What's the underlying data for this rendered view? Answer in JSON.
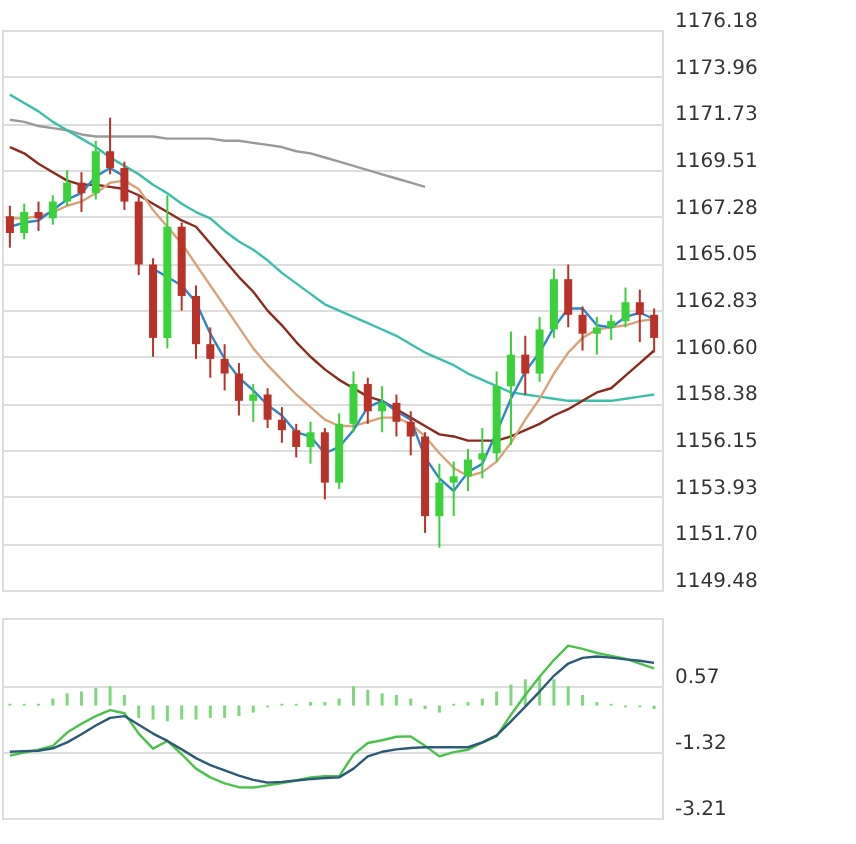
{
  "chart_data": [
    {
      "type": "candlestick",
      "categories": [
        null,
        null,
        null,
        null,
        null,
        null,
        null,
        null,
        null,
        null,
        null,
        null,
        null,
        null,
        null,
        null,
        null,
        null,
        null,
        null,
        null,
        null,
        null,
        null,
        null,
        null,
        null,
        null,
        null,
        null,
        null,
        null,
        null,
        null,
        null,
        null,
        null,
        null,
        null,
        null,
        null,
        null,
        null,
        null,
        null,
        null
      ],
      "ohlc": [
        [
          1167.3,
          1167.8,
          1165.8,
          1166.5
        ],
        [
          1166.5,
          1167.9,
          1166.2,
          1167.5
        ],
        [
          1167.5,
          1168.0,
          1166.6,
          1167.2
        ],
        [
          1167.2,
          1168.3,
          1166.9,
          1168.0
        ],
        [
          1168.0,
          1169.5,
          1167.8,
          1168.9
        ],
        [
          1168.9,
          1169.4,
          1167.5,
          1168.4
        ],
        [
          1168.4,
          1170.9,
          1168.1,
          1170.4
        ],
        [
          1170.4,
          1172.0,
          1169.3,
          1169.6
        ],
        [
          1169.6,
          1169.9,
          1167.6,
          1168.0
        ],
        [
          1168.0,
          1168.3,
          1164.5,
          1165.0
        ],
        [
          1165.0,
          1165.3,
          1160.6,
          1161.5
        ],
        [
          1161.5,
          1168.3,
          1161.0,
          1166.8
        ],
        [
          1166.8,
          1167.0,
          1162.8,
          1163.5
        ],
        [
          1163.5,
          1164.0,
          1160.5,
          1161.2
        ],
        [
          1161.2,
          1162.0,
          1159.6,
          1160.5
        ],
        [
          1160.5,
          1161.2,
          1159.0,
          1159.8
        ],
        [
          1159.8,
          1160.3,
          1157.8,
          1158.5
        ],
        [
          1158.5,
          1159.3,
          1157.5,
          1158.8
        ],
        [
          1158.8,
          1159.1,
          1157.2,
          1157.6
        ],
        [
          1157.6,
          1158.2,
          1156.5,
          1157.1
        ],
        [
          1157.1,
          1157.4,
          1155.8,
          1156.3
        ],
        [
          1156.3,
          1157.5,
          1155.5,
          1157.0
        ],
        [
          1157.0,
          1157.2,
          1153.8,
          1154.6
        ],
        [
          1154.6,
          1157.9,
          1154.3,
          1157.4
        ],
        [
          1157.4,
          1159.9,
          1157.0,
          1159.3
        ],
        [
          1159.3,
          1159.6,
          1157.4,
          1158.0
        ],
        [
          1158.0,
          1159.2,
          1157.0,
          1158.4
        ],
        [
          1158.4,
          1158.8,
          1156.8,
          1157.5
        ],
        [
          1157.5,
          1158.0,
          1155.9,
          1156.8
        ],
        [
          1156.8,
          1157.0,
          1152.2,
          1153.0
        ],
        [
          1153.0,
          1155.5,
          1151.5,
          1154.6
        ],
        [
          1154.6,
          1155.6,
          1153.0,
          1154.9
        ],
        [
          1154.9,
          1156.2,
          1154.2,
          1155.7
        ],
        [
          1155.7,
          1157.2,
          1154.8,
          1156.0
        ],
        [
          1156.0,
          1159.9,
          1155.6,
          1159.2
        ],
        [
          1159.2,
          1161.8,
          1156.4,
          1160.7
        ],
        [
          1160.7,
          1161.6,
          1158.8,
          1159.8
        ],
        [
          1159.8,
          1162.5,
          1159.4,
          1161.9
        ],
        [
          1161.9,
          1164.8,
          1161.5,
          1164.3
        ],
        [
          1164.3,
          1165.0,
          1162.0,
          1162.6
        ],
        [
          1162.6,
          1163.0,
          1160.9,
          1161.7
        ],
        [
          1161.7,
          1162.5,
          1160.7,
          1162.0
        ],
        [
          1162.0,
          1162.6,
          1161.4,
          1162.3
        ],
        [
          1162.3,
          1163.9,
          1162.0,
          1163.2
        ],
        [
          1163.2,
          1163.8,
          1161.3,
          1162.6
        ],
        [
          1162.6,
          1162.9,
          1160.8,
          1161.5
        ]
      ],
      "series": [
        {
          "type": "line",
          "color": "#9a9a9a",
          "values": [
            1171.9,
            1171.8,
            1171.6,
            1171.5,
            1171.4,
            1171.2,
            1171.1,
            1171.1,
            1171.1,
            1171.1,
            1171.1,
            1171.0,
            1171.0,
            1171.0,
            1171.0,
            1170.9,
            1170.9,
            1170.8,
            1170.7,
            1170.6,
            1170.4,
            1170.3,
            1170.1,
            1169.9,
            1169.7,
            1169.5,
            1169.3,
            1169.1,
            1168.9,
            1168.7,
            null,
            null,
            null,
            null,
            null,
            null,
            null,
            null,
            null,
            null,
            null,
            null,
            null,
            null,
            null,
            null
          ]
        },
        {
          "type": "line",
          "color": "#3cbfa8",
          "values": [
            1173.1,
            1172.7,
            1172.3,
            1171.8,
            1171.4,
            1171.0,
            1170.6,
            1170.1,
            1169.7,
            1169.3,
            1168.8,
            1168.4,
            1167.9,
            1167.5,
            1167.2,
            1166.6,
            1166.1,
            1165.7,
            1165.2,
            1164.6,
            1164.1,
            1163.6,
            1163.1,
            1162.8,
            1162.5,
            1162.2,
            1161.9,
            1161.6,
            1161.2,
            1160.8,
            1160.5,
            1160.2,
            1159.8,
            1159.5,
            1159.2,
            1158.9,
            1158.8,
            1158.7,
            1158.6,
            1158.5,
            1158.5,
            1158.5,
            1158.5,
            1158.6,
            1158.7,
            1158.8
          ]
        },
        {
          "type": "line",
          "color": "#8b2a1e",
          "values": [
            1170.6,
            1170.3,
            1169.8,
            1169.4,
            1169.0,
            1168.8,
            1168.8,
            1168.7,
            1168.6,
            1168.3,
            1167.9,
            1167.5,
            1167.1,
            1166.8,
            1166.0,
            1165.2,
            1164.4,
            1163.7,
            1162.8,
            1162.1,
            1161.3,
            1160.6,
            1160.0,
            1159.5,
            1159.1,
            1158.7,
            1158.5,
            1158.1,
            1157.7,
            1157.3,
            1156.9,
            1156.8,
            1156.6,
            1156.6,
            1156.6,
            1156.8,
            1157.1,
            1157.4,
            1157.8,
            1158.1,
            1158.5,
            1158.9,
            1159.1,
            1159.7,
            1160.3,
            1160.9
          ]
        },
        {
          "type": "line",
          "color": "#d9a27a",
          "values": [
            1167.2,
            1167.2,
            1167.3,
            1167.5,
            1167.8,
            1168.0,
            1168.4,
            1168.9,
            1169.0,
            1168.6,
            1167.6,
            1166.8,
            1166.0,
            1165.0,
            1164.0,
            1163.0,
            1162.0,
            1161.0,
            1160.2,
            1159.5,
            1158.8,
            1158.2,
            1157.6,
            1157.3,
            1157.3,
            1157.5,
            1157.7,
            1157.7,
            1157.4,
            1156.8,
            1156.0,
            1155.3,
            1154.9,
            1155.1,
            1155.6,
            1156.5,
            1157.6,
            1158.6,
            1159.8,
            1160.8,
            1161.5,
            1161.9,
            1162.0,
            1162.1,
            1162.3,
            1162.4
          ]
        },
        {
          "type": "line",
          "color": "#2f86c8",
          "values": [
            1166.8,
            1167.0,
            1167.1,
            1167.6,
            1168.1,
            1168.4,
            1169.2,
            1169.6,
            1169.2,
            null,
            1164.8,
            1164.4,
            1164.0,
            1163.2,
            1161.7,
            1160.5,
            1159.6,
            1159.0,
            1158.3,
            1157.8,
            1157.0,
            1156.8,
            1156.0,
            1156.3,
            1157.1,
            1158.2,
            1158.5,
            1158.0,
            1157.6,
            1155.8,
            1154.8,
            1154.2,
            1155.1,
            1155.5,
            1157.0,
            1158.6,
            1159.9,
            1160.8,
            1162.0,
            1162.9,
            1162.9,
            1162.1,
            1162.0,
            1162.5,
            1162.7,
            1162.4
          ]
        }
      ],
      "ylim": [
        1149.48,
        1176.18
      ],
      "yticks": [
        1149.48,
        {
          "value": 1151.7,
          "label": "1151.70"
        },
        1153.93,
        1156.15,
        1158.38,
        {
          "value": 1160.6,
          "label": "1160.60"
        },
        1162.83,
        1165.05,
        1167.28,
        1169.51,
        1171.73,
        1173.96,
        1176.18
      ],
      "grid": "y",
      "tick_labels": "y"
    },
    {
      "type": "line",
      "categories": [
        null,
        null,
        null,
        null,
        null,
        null,
        null,
        null,
        null,
        null,
        null,
        null,
        null,
        null,
        null,
        null,
        null,
        null,
        null,
        null,
        null,
        null,
        null,
        null,
        null,
        null,
        null,
        null,
        null,
        null,
        null,
        null,
        null,
        null,
        null,
        null,
        null,
        null,
        null,
        null,
        null,
        null,
        null,
        null,
        null,
        null
      ],
      "series": [
        {
          "type": "bar",
          "color": "#7fd67f",
          "values": [
            0.05,
            0.05,
            0.05,
            0.2,
            0.35,
            0.4,
            0.5,
            0.55,
            0.3,
            -0.35,
            -0.4,
            -0.45,
            -0.4,
            -0.4,
            -0.35,
            -0.35,
            -0.3,
            -0.2,
            -0.05,
            0.05,
            0.05,
            0.1,
            0.1,
            0.2,
            0.55,
            0.45,
            0.35,
            0.3,
            0.2,
            -0.1,
            -0.2,
            0.05,
            0.1,
            0.2,
            0.4,
            0.6,
            0.75,
            0.85,
            0.75,
            0.55,
            0.3,
            0.1,
            0.05,
            -0.05,
            -0.05,
            -0.1
          ]
        },
        {
          "type": "line",
          "color": "#4cc24c",
          "values": [
            -1.43,
            -1.34,
            -1.26,
            -1.15,
            -0.77,
            -0.52,
            -0.3,
            -0.13,
            -0.22,
            -0.8,
            -1.23,
            -1.01,
            -1.39,
            -1.8,
            -2.05,
            -2.22,
            -2.33,
            -2.34,
            -2.28,
            -2.21,
            -2.14,
            -2.05,
            -2.02,
            -2.02,
            -1.4,
            -1.07,
            -0.99,
            -0.89,
            -0.88,
            -1.15,
            -1.45,
            -1.33,
            -1.26,
            -1.06,
            -0.88,
            -0.26,
            0.3,
            0.82,
            1.3,
            1.71,
            1.62,
            1.5,
            1.42,
            1.34,
            1.2,
            1.06
          ]
        },
        {
          "type": "line",
          "color": "#2d5a78",
          "values": [
            -1.32,
            -1.3,
            -1.29,
            -1.22,
            -1.05,
            -0.82,
            -0.57,
            -0.35,
            -0.3,
            -0.55,
            -0.8,
            -1.01,
            -1.25,
            -1.5,
            -1.7,
            -1.85,
            -2.0,
            -2.12,
            -2.2,
            -2.18,
            -2.14,
            -2.1,
            -2.07,
            -2.05,
            -1.8,
            -1.45,
            -1.32,
            -1.25,
            -1.21,
            -1.19,
            -1.19,
            -1.19,
            -1.19,
            -1.05,
            -0.85,
            -0.45,
            -0.03,
            0.4,
            0.85,
            1.2,
            1.36,
            1.4,
            1.37,
            1.32,
            1.28,
            1.22
          ]
        }
      ],
      "ylim": [
        -3.21,
        2.5
      ],
      "yticks": [
        0.57,
        -1.32,
        -3.21
      ],
      "grid": "y",
      "tick_labels": "y"
    }
  ]
}
